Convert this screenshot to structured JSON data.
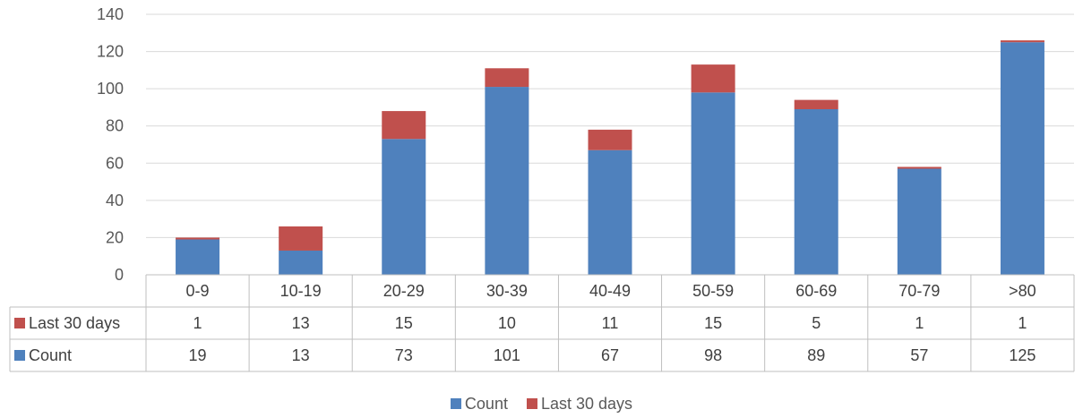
{
  "chart_data": {
    "type": "bar",
    "stacked": true,
    "categories": [
      "0-9",
      "10-19",
      "20-29",
      "30-39",
      "40-49",
      "50-59",
      "60-69",
      "70-79",
      ">80"
    ],
    "series": [
      {
        "name": "Count",
        "color": "#4f81bd",
        "values": [
          19,
          13,
          73,
          101,
          67,
          98,
          89,
          57,
          125
        ]
      },
      {
        "name": "Last 30 days",
        "color": "#c0504d",
        "values": [
          1,
          13,
          15,
          10,
          11,
          15,
          5,
          1,
          1
        ]
      }
    ],
    "ylim": [
      0,
      140
    ],
    "yticks": [
      0,
      20,
      40,
      60,
      80,
      100,
      120,
      140
    ],
    "grid": true,
    "data_table": true,
    "table_row_order": [
      "Last 30 days",
      "Count"
    ],
    "legend_position": "bottom"
  }
}
